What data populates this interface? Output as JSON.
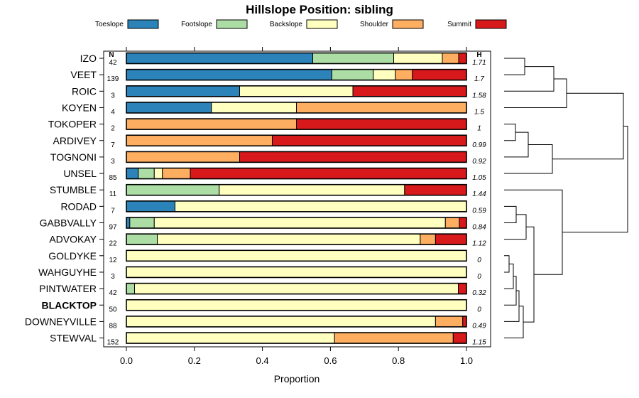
{
  "chart_data": {
    "type": "bar",
    "stacked": true,
    "orientation": "horizontal",
    "title": "Hillslope Position: sibling",
    "xlabel": "Proportion",
    "ylabel": "",
    "xlim": [
      0,
      1
    ],
    "x_ticks": [
      "0.0",
      "0.2",
      "0.4",
      "0.6",
      "0.8",
      "1.0"
    ],
    "x_tick_values": [
      0,
      0.2,
      0.4,
      0.6,
      0.8,
      1.0
    ],
    "legend_position": "top",
    "n_header": "N",
    "h_header": "H",
    "highlight": "BLACKTOP",
    "series": [
      {
        "name": "Toeslope",
        "color": "#2b83ba"
      },
      {
        "name": "Footslope",
        "color": "#abdda4"
      },
      {
        "name": "Backslope",
        "color": "#ffffbf"
      },
      {
        "name": "Shoulder",
        "color": "#fdae61"
      },
      {
        "name": "Summit",
        "color": "#d7191c"
      }
    ],
    "rows": [
      {
        "label": "IZO",
        "n": "42",
        "h": "1.71",
        "values": [
          0.548,
          0.238,
          0.143,
          0.048,
          0.023
        ]
      },
      {
        "label": "VEET",
        "n": "139",
        "h": "1.7",
        "values": [
          0.604,
          0.122,
          0.065,
          0.05,
          0.159
        ]
      },
      {
        "label": "ROIC",
        "n": "3",
        "h": "1.58",
        "values": [
          0.333,
          0.0,
          0.333,
          0.0,
          0.334
        ]
      },
      {
        "label": "KOYEN",
        "n": "4",
        "h": "1.5",
        "values": [
          0.25,
          0.0,
          0.25,
          0.5,
          0.0
        ]
      },
      {
        "label": "TOKOPER",
        "n": "2",
        "h": "1",
        "values": [
          0.0,
          0.0,
          0.0,
          0.5,
          0.5
        ]
      },
      {
        "label": "ARDIVEY",
        "n": "7",
        "h": "0.99",
        "values": [
          0.0,
          0.0,
          0.0,
          0.429,
          0.571
        ]
      },
      {
        "label": "TOGNONI",
        "n": "3",
        "h": "0.92",
        "values": [
          0.0,
          0.0,
          0.0,
          0.333,
          0.667
        ]
      },
      {
        "label": "UNSEL",
        "n": "85",
        "h": "1.05",
        "values": [
          0.035,
          0.047,
          0.024,
          0.082,
          0.812
        ]
      },
      {
        "label": "STUMBLE",
        "n": "11",
        "h": "1.44",
        "values": [
          0.0,
          0.273,
          0.545,
          0.0,
          0.182
        ]
      },
      {
        "label": "RODAD",
        "n": "7",
        "h": "0.59",
        "values": [
          0.143,
          0.0,
          0.857,
          0.0,
          0.0
        ]
      },
      {
        "label": "GABBVALLY",
        "n": "97",
        "h": "0.84",
        "values": [
          0.01,
          0.072,
          0.856,
          0.041,
          0.021
        ]
      },
      {
        "label": "ADVOKAY",
        "n": "22",
        "h": "1.12",
        "values": [
          0.0,
          0.091,
          0.773,
          0.045,
          0.091
        ]
      },
      {
        "label": "GOLDYKE",
        "n": "12",
        "h": "0",
        "values": [
          0.0,
          0.0,
          1.0,
          0.0,
          0.0
        ]
      },
      {
        "label": "WAHGUYHE",
        "n": "3",
        "h": "0",
        "values": [
          0.0,
          0.0,
          1.0,
          0.0,
          0.0
        ]
      },
      {
        "label": "PINTWATER",
        "n": "42",
        "h": "0.32",
        "values": [
          0.0,
          0.024,
          0.952,
          0.0,
          0.024
        ]
      },
      {
        "label": "BLACKTOP",
        "n": "50",
        "h": "0",
        "values": [
          0.0,
          0.0,
          1.0,
          0.0,
          0.0
        ]
      },
      {
        "label": "DOWNEYVILLE",
        "n": "88",
        "h": "0.49",
        "values": [
          0.0,
          0.0,
          0.909,
          0.08,
          0.011
        ]
      },
      {
        "label": "STEWVAL",
        "n": "152",
        "h": "1.15",
        "values": [
          0.0,
          0.0,
          0.612,
          0.349,
          0.039
        ]
      }
    ]
  }
}
